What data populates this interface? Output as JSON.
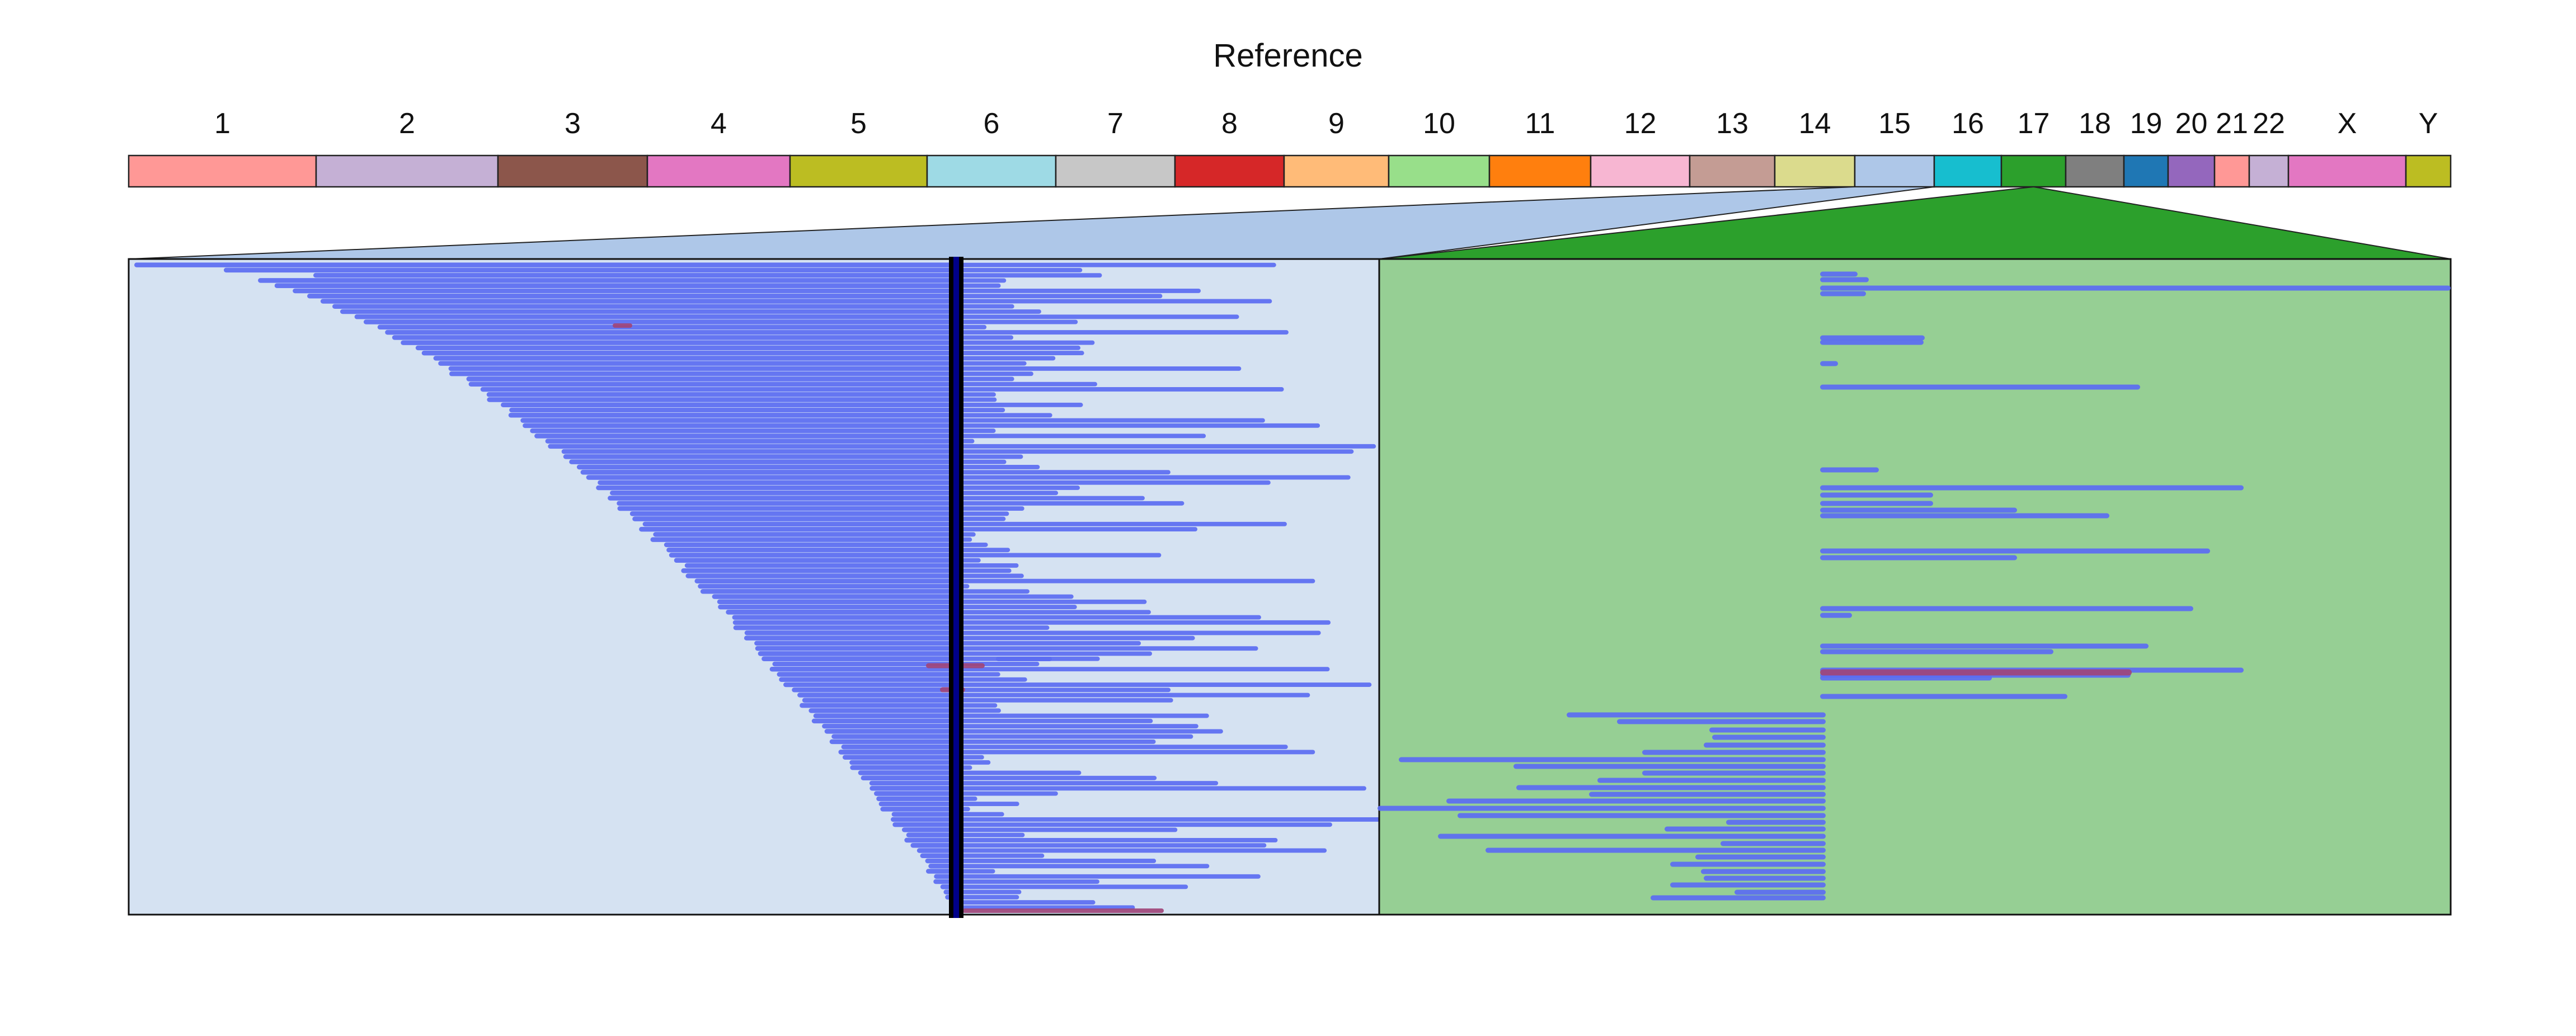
{
  "title": "Reference",
  "chromosomes": [
    {
      "label": "1",
      "color": "#ff9896"
    },
    {
      "label": "2",
      "color": "#c5b0d5"
    },
    {
      "label": "3",
      "color": "#8c564b"
    },
    {
      "label": "4",
      "color": "#e377c2"
    },
    {
      "label": "5",
      "color": "#bcbd22"
    },
    {
      "label": "6",
      "color": "#9edae5"
    },
    {
      "label": "7",
      "color": "#c7c7c7"
    },
    {
      "label": "8",
      "color": "#d62728"
    },
    {
      "label": "9",
      "color": "#ffbb78"
    },
    {
      "label": "10",
      "color": "#98df8a"
    },
    {
      "label": "11",
      "color": "#ff7f0e"
    },
    {
      "label": "12",
      "color": "#f7b6d2"
    },
    {
      "label": "13",
      "color": "#c49c94"
    },
    {
      "label": "14",
      "color": "#dbdb8d"
    },
    {
      "label": "15",
      "color": "#aec7e8"
    },
    {
      "label": "16",
      "color": "#17becf"
    },
    {
      "label": "17",
      "color": "#2ca02c"
    },
    {
      "label": "18",
      "color": "#7f7f7f"
    },
    {
      "label": "19",
      "color": "#1f77b4"
    },
    {
      "label": "20",
      "color": "#9467bd"
    },
    {
      "label": "21",
      "color": "#ff9896"
    },
    {
      "label": "22",
      "color": "#c5b0d5"
    },
    {
      "label": "X",
      "color": "#e377c2"
    },
    {
      "label": "Y",
      "color": "#bcbd22"
    }
  ],
  "panels": [
    {
      "chromosome": "15",
      "background": "#d5e2f2",
      "wedge": "#aec7e8"
    },
    {
      "chromosome": "17",
      "background": "#96cf94",
      "wedge": "#2ca02c"
    }
  ],
  "read_colors": {
    "primary": "#5b6cf2",
    "edge": "#3a4ad8",
    "highlight": "#a0457a",
    "marker": "#000000"
  }
}
